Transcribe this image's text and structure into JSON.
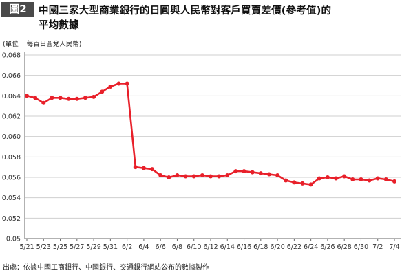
{
  "header": {
    "figure_label": "圖2",
    "title_line1": "中國三家大型商業銀行的日圓與人民幣對客戶買賣差價(參考值)的",
    "title_line2": "平均數據"
  },
  "unit_label": {
    "prefix": "(單位",
    "text": "每百日圓兌人民幣)"
  },
  "source": "出處：依據中國工商銀行、中國銀行、交通銀行網站公布的數據製作",
  "colors": {
    "line": "#e8202a",
    "marker": "#e8202a",
    "grid": "#cfcfcf",
    "axis": "#666666",
    "badge": "#4a4a4a"
  },
  "chart_data": {
    "type": "line",
    "title": "",
    "xlabel": "",
    "ylabel": "",
    "ylim": [
      0.05,
      0.068
    ],
    "yticks": [
      0.05,
      0.052,
      0.054,
      0.056,
      0.058,
      0.06,
      0.062,
      0.064,
      0.066,
      0.068
    ],
    "ytick_labels": [
      "0.05",
      "0.052",
      "0.054",
      "0.056",
      "0.058",
      "0.060",
      "0.062",
      "0.064",
      "0.066",
      "0.068"
    ],
    "grid": true,
    "x_labels": [
      "5/21",
      "5/23",
      "5/25",
      "5/27",
      "5/29",
      "5/31",
      "6/2",
      "6/4",
      "6/6",
      "6/8",
      "6/10",
      "6/12",
      "6/14",
      "6/16",
      "6/18",
      "6/20",
      "6/22",
      "6/24",
      "6/26",
      "6/28",
      "6/30",
      "7/2",
      "7/4"
    ],
    "x_label_every": 2,
    "series": [
      {
        "values": [
          0.064,
          0.0638,
          0.0633,
          0.0638,
          0.0638,
          0.0637,
          0.0637,
          0.0638,
          0.0639,
          0.0644,
          0.0649,
          0.0652,
          0.0652,
          0.057,
          0.0569,
          0.0568,
          0.0562,
          0.056,
          0.0562,
          0.0561,
          0.0561,
          0.0562,
          0.0561,
          0.0561,
          0.0562,
          0.0566,
          0.0566,
          0.0565,
          0.0564,
          0.0563,
          0.0562,
          0.0557,
          0.0555,
          0.0554,
          0.0553,
          0.0559,
          0.056,
          0.0559,
          0.0561,
          0.0558,
          0.0558,
          0.0557,
          0.0559,
          0.0558,
          0.0556
        ]
      }
    ]
  }
}
